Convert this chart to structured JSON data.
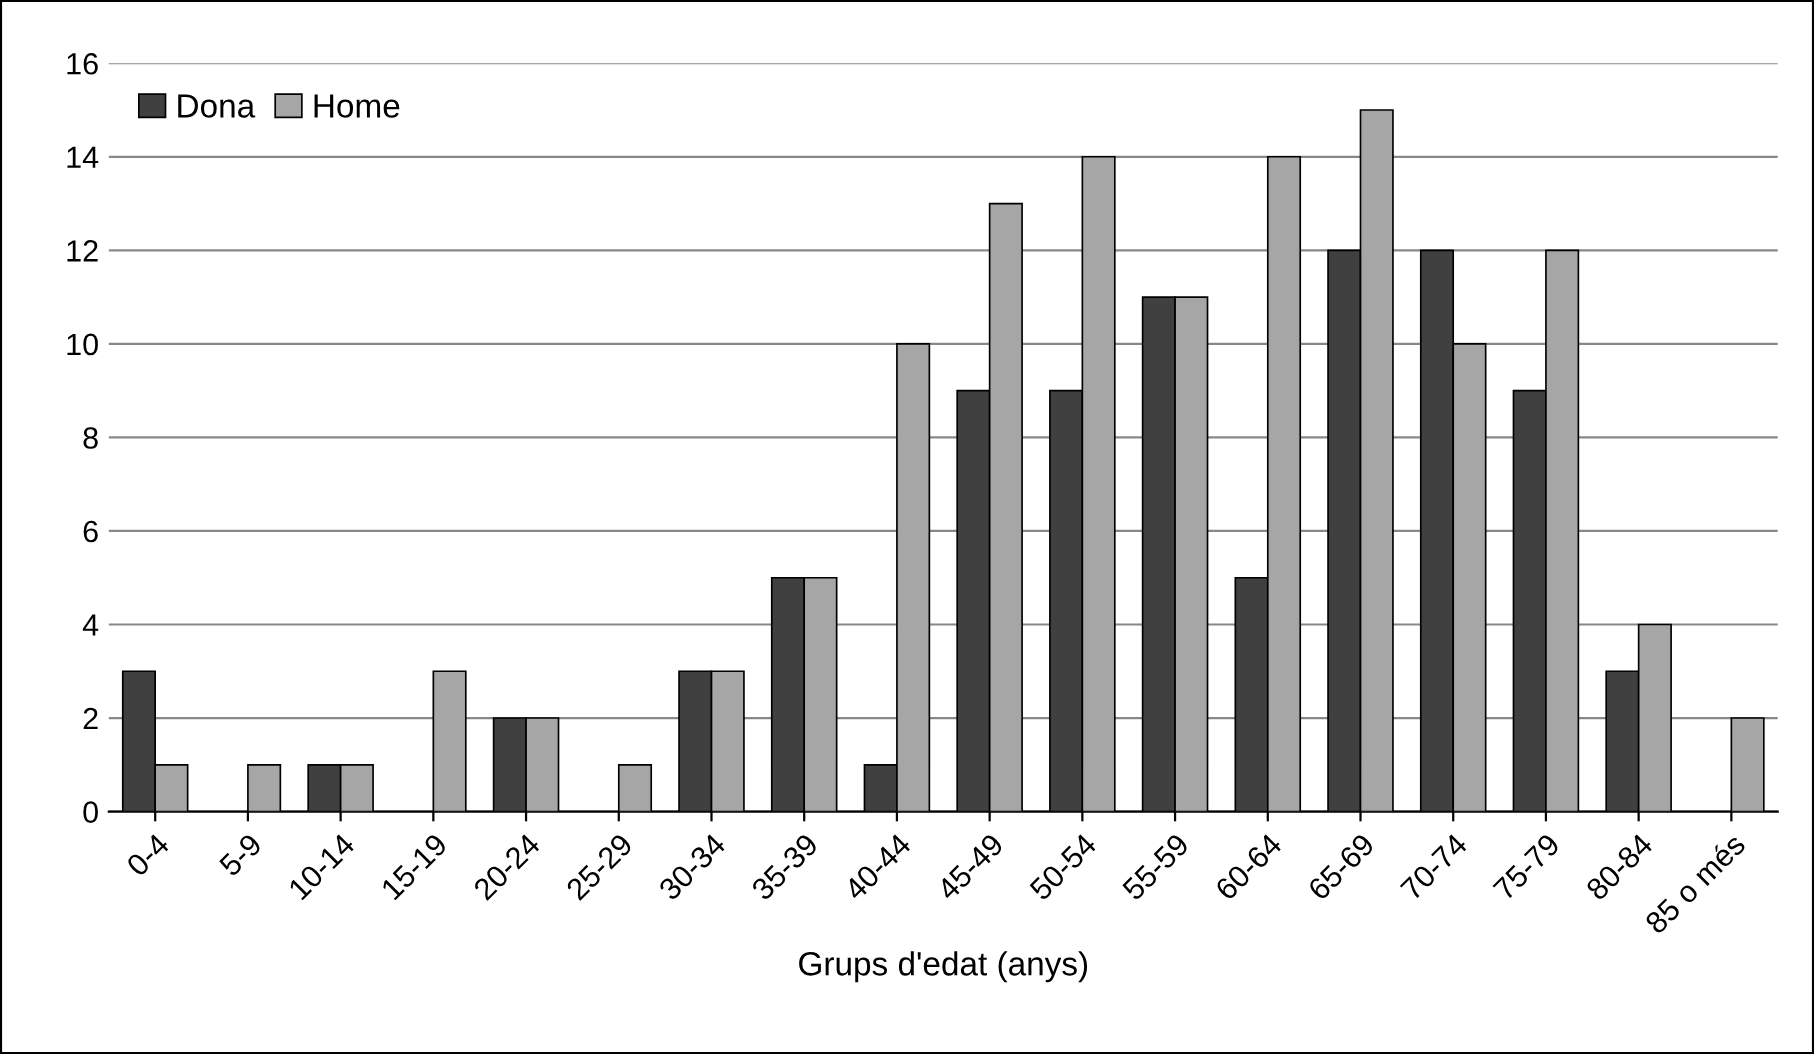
{
  "chart_data": {
    "type": "bar",
    "xlabel": "Grups d'edat (anys)",
    "categories": [
      "0-4",
      "5-9",
      "10-14",
      "15-19",
      "20-24",
      "25-29",
      "30-34",
      "35-39",
      "40-44",
      "45-49",
      "50-54",
      "55-59",
      "60-64",
      "65-69",
      "70-74",
      "75-79",
      "80-84",
      "85 o més"
    ],
    "series": [
      {
        "name": "Dona",
        "color": "#404040",
        "values": [
          3,
          0,
          1,
          0,
          2,
          0,
          3,
          5,
          1,
          9,
          9,
          11,
          5,
          12,
          12,
          9,
          3,
          0
        ]
      },
      {
        "name": "Home",
        "color": "#a6a6a6",
        "values": [
          1,
          1,
          1,
          3,
          2,
          1,
          3,
          5,
          10,
          13,
          14,
          11,
          14,
          15,
          10,
          12,
          4,
          2
        ]
      }
    ],
    "ylim": [
      0,
      16
    ],
    "yticks": [
      0,
      2,
      4,
      6,
      8,
      10,
      12,
      14,
      16
    ],
    "grid": "y",
    "legend": "top left"
  }
}
